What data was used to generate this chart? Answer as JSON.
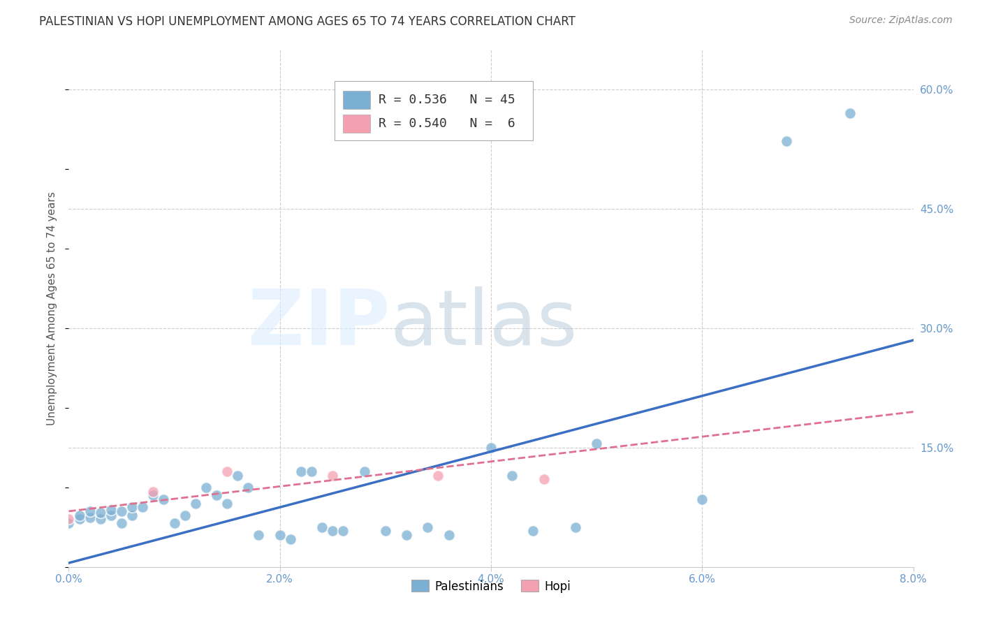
{
  "title": "PALESTINIAN VS HOPI UNEMPLOYMENT AMONG AGES 65 TO 74 YEARS CORRELATION CHART",
  "source": "Source: ZipAtlas.com",
  "ylabel": "Unemployment Among Ages 65 to 74 years",
  "xlim": [
    0,
    0.08
  ],
  "ylim": [
    0,
    0.65
  ],
  "xticks": [
    0.0,
    0.02,
    0.04,
    0.06,
    0.08
  ],
  "yticks": [
    0.15,
    0.3,
    0.45,
    0.6
  ],
  "pal_color": "#7bafd4",
  "hopi_color": "#f4a0b0",
  "pal_R": "0.536",
  "pal_N": "45",
  "hopi_R": "0.540",
  "hopi_N": " 6",
  "pal_x": [
    0.0,
    0.001,
    0.001,
    0.002,
    0.002,
    0.003,
    0.003,
    0.004,
    0.004,
    0.005,
    0.005,
    0.006,
    0.006,
    0.007,
    0.008,
    0.009,
    0.01,
    0.011,
    0.012,
    0.013,
    0.014,
    0.015,
    0.016,
    0.017,
    0.018,
    0.02,
    0.021,
    0.022,
    0.023,
    0.024,
    0.025,
    0.026,
    0.028,
    0.03,
    0.032,
    0.034,
    0.036,
    0.04,
    0.042,
    0.044,
    0.048,
    0.05,
    0.06,
    0.068,
    0.074
  ],
  "pal_y": [
    0.055,
    0.06,
    0.065,
    0.062,
    0.07,
    0.06,
    0.068,
    0.065,
    0.072,
    0.055,
    0.07,
    0.065,
    0.075,
    0.075,
    0.09,
    0.085,
    0.055,
    0.065,
    0.08,
    0.1,
    0.09,
    0.08,
    0.115,
    0.1,
    0.04,
    0.04,
    0.035,
    0.12,
    0.12,
    0.05,
    0.045,
    0.045,
    0.12,
    0.045,
    0.04,
    0.05,
    0.04,
    0.15,
    0.115,
    0.045,
    0.05,
    0.155,
    0.085,
    0.535,
    0.57
  ],
  "hopi_x": [
    0.0,
    0.008,
    0.015,
    0.025,
    0.035,
    0.045
  ],
  "hopi_y": [
    0.06,
    0.095,
    0.12,
    0.115,
    0.115,
    0.11
  ],
  "pal_trend_x": [
    0.0,
    0.08
  ],
  "pal_trend_y": [
    0.005,
    0.285
  ],
  "hopi_trend_x": [
    0.0,
    0.08
  ],
  "hopi_trend_y": [
    0.07,
    0.195
  ],
  "background_color": "#ffffff",
  "grid_color": "#cccccc",
  "title_color": "#333333",
  "axis_color": "#6699cc"
}
